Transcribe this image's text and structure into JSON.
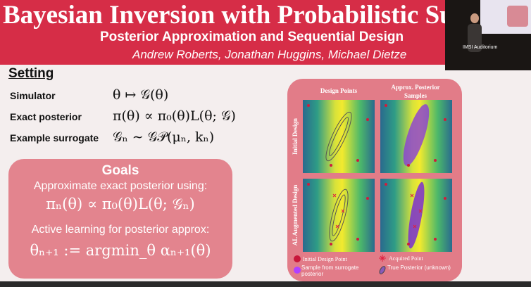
{
  "header": {
    "title": "Bayesian Inversion with Probabilistic Sur",
    "subtitle": "Posterior Approximation and Sequential Design",
    "authors": "Andrew Roberts, Jonathan Huggins, Michael Dietze"
  },
  "webcam": {
    "label": "IMSI Auditorium"
  },
  "setting": {
    "heading": "Setting",
    "rows": [
      {
        "label": "Simulator",
        "formula": "θ ↦ 𝒢(θ)"
      },
      {
        "label": "Exact posterior",
        "formula": "π(θ) ∝ π₀(θ)L(θ; 𝒢)"
      },
      {
        "label": "Example surrogate",
        "formula": "𝒢ₙ ∼ 𝒢𝒫(μₙ, kₙ)"
      }
    ]
  },
  "goals": {
    "heading": "Goals",
    "lines": [
      "Approximate exact posterior using:",
      "πₙ(θ) ∝ π₀(θ)L(θ; 𝒢ₙ)",
      "Active learning for posterior approx:",
      "θₙ₊₁ := argmin_θ αₙ₊₁(θ)"
    ]
  },
  "figure": {
    "columns": [
      "Design Points",
      "Approx. Posterior Samples"
    ],
    "rows": [
      "Initial Design",
      "AL Augmented Design"
    ],
    "legend": [
      "Initial Design Point",
      "Sample from surrogate posterior",
      "Acquired Point",
      "True Posterior (unknown)"
    ]
  }
}
